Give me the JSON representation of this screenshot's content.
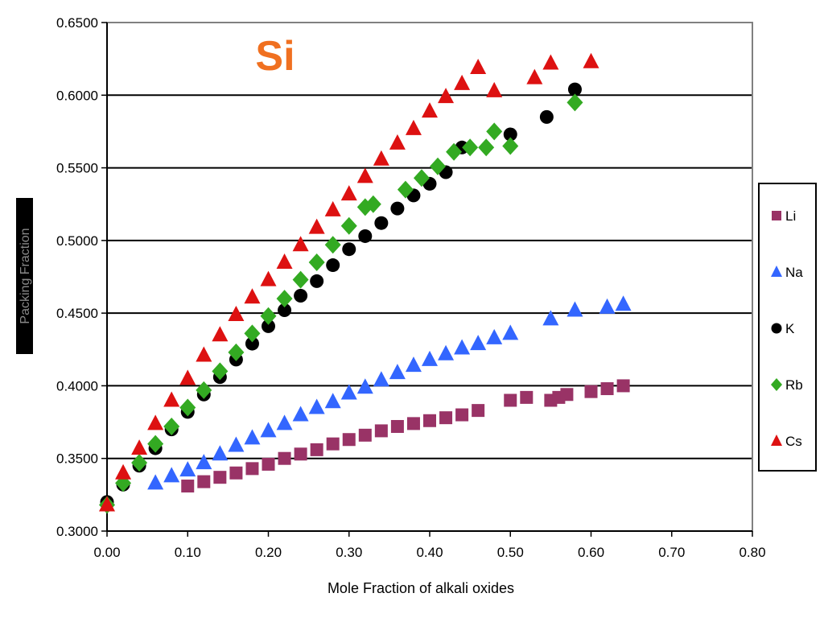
{
  "chart_data": {
    "type": "scatter",
    "title": "Si",
    "xlabel": "Mole Fraction of alkali oxides",
    "ylabel": "Packing Fraction",
    "xlim": [
      0,
      0.8
    ],
    "ylim": [
      0.3,
      0.65
    ],
    "x_ticks": [
      "0.00",
      "0.10",
      "0.20",
      "0.30",
      "0.40",
      "0.50",
      "0.60",
      "0.70",
      "0.80"
    ],
    "y_ticks": [
      "0.3000",
      "0.3500",
      "0.4000",
      "0.4500",
      "0.5000",
      "0.5500",
      "0.6000",
      "0.6500"
    ],
    "grid": "horizontal",
    "legend_position": "right",
    "colors": {
      "title": "#F07020",
      "grid": "#000000",
      "plot_border": "#808080",
      "Li": "#993366",
      "Na": "#3366FF",
      "K": "#000000",
      "Rb": "#33AA22",
      "Cs": "#DD1111"
    },
    "series": [
      {
        "name": "Li",
        "marker": "square",
        "points": [
          [
            0.1,
            0.331
          ],
          [
            0.12,
            0.334
          ],
          [
            0.14,
            0.337
          ],
          [
            0.16,
            0.34
          ],
          [
            0.18,
            0.343
          ],
          [
            0.2,
            0.346
          ],
          [
            0.22,
            0.35
          ],
          [
            0.24,
            0.353
          ],
          [
            0.26,
            0.356
          ],
          [
            0.28,
            0.36
          ],
          [
            0.3,
            0.363
          ],
          [
            0.32,
            0.366
          ],
          [
            0.34,
            0.369
          ],
          [
            0.36,
            0.372
          ],
          [
            0.38,
            0.374
          ],
          [
            0.4,
            0.376
          ],
          [
            0.42,
            0.378
          ],
          [
            0.44,
            0.38
          ],
          [
            0.46,
            0.383
          ],
          [
            0.5,
            0.39
          ],
          [
            0.52,
            0.392
          ],
          [
            0.55,
            0.39
          ],
          [
            0.56,
            0.392
          ],
          [
            0.57,
            0.394
          ],
          [
            0.6,
            0.396
          ],
          [
            0.62,
            0.398
          ],
          [
            0.64,
            0.4
          ]
        ]
      },
      {
        "name": "Na",
        "marker": "triangle",
        "points": [
          [
            0.06,
            0.333
          ],
          [
            0.08,
            0.338
          ],
          [
            0.1,
            0.342
          ],
          [
            0.12,
            0.347
          ],
          [
            0.14,
            0.353
          ],
          [
            0.16,
            0.359
          ],
          [
            0.18,
            0.364
          ],
          [
            0.2,
            0.369
          ],
          [
            0.22,
            0.374
          ],
          [
            0.24,
            0.38
          ],
          [
            0.26,
            0.385
          ],
          [
            0.28,
            0.389
          ],
          [
            0.3,
            0.395
          ],
          [
            0.32,
            0.399
          ],
          [
            0.34,
            0.404
          ],
          [
            0.36,
            0.409
          ],
          [
            0.38,
            0.414
          ],
          [
            0.4,
            0.418
          ],
          [
            0.42,
            0.422
          ],
          [
            0.44,
            0.426
          ],
          [
            0.46,
            0.429
          ],
          [
            0.48,
            0.433
          ],
          [
            0.5,
            0.436
          ],
          [
            0.55,
            0.446
          ],
          [
            0.58,
            0.452
          ],
          [
            0.62,
            0.454
          ],
          [
            0.64,
            0.456
          ]
        ]
      },
      {
        "name": "K",
        "marker": "circle",
        "points": [
          [
            0.0,
            0.32
          ],
          [
            0.02,
            0.332
          ],
          [
            0.04,
            0.345
          ],
          [
            0.06,
            0.357
          ],
          [
            0.08,
            0.37
          ],
          [
            0.1,
            0.382
          ],
          [
            0.12,
            0.394
          ],
          [
            0.14,
            0.406
          ],
          [
            0.16,
            0.418
          ],
          [
            0.18,
            0.429
          ],
          [
            0.2,
            0.441
          ],
          [
            0.22,
            0.452
          ],
          [
            0.24,
            0.462
          ],
          [
            0.26,
            0.472
          ],
          [
            0.28,
            0.483
          ],
          [
            0.3,
            0.494
          ],
          [
            0.32,
            0.503
          ],
          [
            0.34,
            0.512
          ],
          [
            0.36,
            0.522
          ],
          [
            0.38,
            0.531
          ],
          [
            0.4,
            0.539
          ],
          [
            0.42,
            0.547
          ],
          [
            0.44,
            0.564
          ],
          [
            0.5,
            0.573
          ],
          [
            0.545,
            0.585
          ],
          [
            0.58,
            0.604
          ]
        ]
      },
      {
        "name": "Rb",
        "marker": "diamond",
        "points": [
          [
            0.0,
            0.318
          ],
          [
            0.02,
            0.333
          ],
          [
            0.04,
            0.347
          ],
          [
            0.06,
            0.36
          ],
          [
            0.08,
            0.372
          ],
          [
            0.1,
            0.385
          ],
          [
            0.12,
            0.397
          ],
          [
            0.14,
            0.41
          ],
          [
            0.16,
            0.423
          ],
          [
            0.18,
            0.436
          ],
          [
            0.2,
            0.448
          ],
          [
            0.22,
            0.46
          ],
          [
            0.24,
            0.473
          ],
          [
            0.26,
            0.485
          ],
          [
            0.28,
            0.497
          ],
          [
            0.3,
            0.51
          ],
          [
            0.32,
            0.523
          ],
          [
            0.33,
            0.525
          ],
          [
            0.37,
            0.535
          ],
          [
            0.39,
            0.543
          ],
          [
            0.41,
            0.551
          ],
          [
            0.43,
            0.561
          ],
          [
            0.45,
            0.564
          ],
          [
            0.47,
            0.564
          ],
          [
            0.48,
            0.575
          ],
          [
            0.5,
            0.565
          ],
          [
            0.58,
            0.595
          ]
        ]
      },
      {
        "name": "Cs",
        "marker": "triangle",
        "points": [
          [
            0.0,
            0.318
          ],
          [
            0.02,
            0.34
          ],
          [
            0.04,
            0.357
          ],
          [
            0.06,
            0.374
          ],
          [
            0.08,
            0.39
          ],
          [
            0.1,
            0.405
          ],
          [
            0.12,
            0.421
          ],
          [
            0.14,
            0.435
          ],
          [
            0.16,
            0.449
          ],
          [
            0.18,
            0.461
          ],
          [
            0.2,
            0.473
          ],
          [
            0.22,
            0.485
          ],
          [
            0.24,
            0.497
          ],
          [
            0.26,
            0.509
          ],
          [
            0.28,
            0.521
          ],
          [
            0.3,
            0.532
          ],
          [
            0.32,
            0.544
          ],
          [
            0.34,
            0.556
          ],
          [
            0.36,
            0.567
          ],
          [
            0.38,
            0.577
          ],
          [
            0.4,
            0.589
          ],
          [
            0.42,
            0.599
          ],
          [
            0.44,
            0.608
          ],
          [
            0.46,
            0.619
          ],
          [
            0.48,
            0.603
          ],
          [
            0.53,
            0.612
          ],
          [
            0.55,
            0.622
          ],
          [
            0.6,
            0.623
          ]
        ]
      }
    ]
  }
}
